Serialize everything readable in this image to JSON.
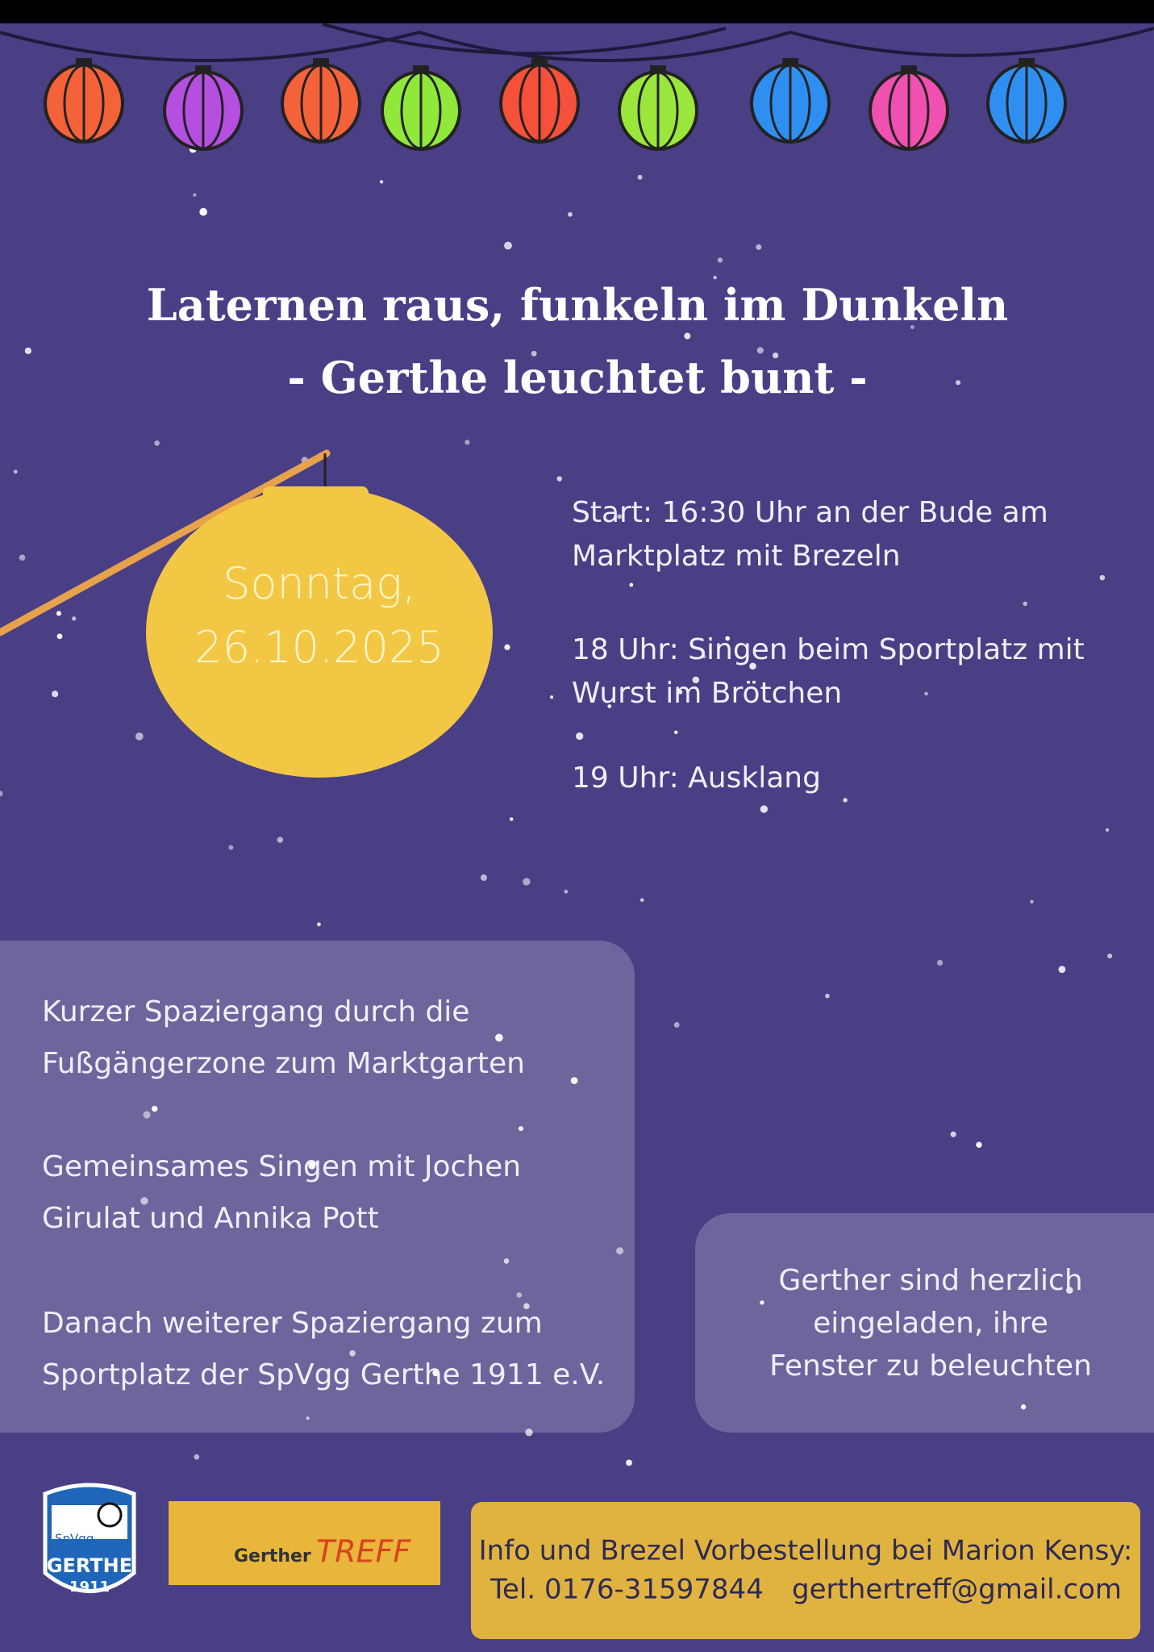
{
  "header": {
    "title": "Laternen raus, funkeln im Dunkeln",
    "subtitle": "- Gerthe leuchtet bunt -"
  },
  "date": {
    "day": "Sonntag,",
    "date": "26.10.2025"
  },
  "schedule": [
    {
      "lines": [
        "Start: 16:30 Uhr an der Bude am",
        "Marktplatz mit Brezeln"
      ]
    },
    {
      "lines": [
        "18 Uhr: Singen beim Sportplatz mit",
        "Wurst im Brötchen"
      ]
    },
    {
      "lines": [
        "19 Uhr: Ausklang"
      ]
    }
  ],
  "walk": [
    {
      "lines": [
        "Kurzer Spaziergang durch die",
        "Fußgängerzone zum Marktgarten"
      ]
    },
    {
      "lines": [
        "Gemeinsames Singen mit Jochen",
        "Girulat und Annika Pott"
      ]
    },
    {
      "lines": [
        "Danach weiterer Spaziergang zum",
        "Sportplatz der SpVgg Gerthe 1911 e.V."
      ]
    }
  ],
  "invitation": {
    "lines": [
      "Gerther sind herzlich",
      "eingeladen, ihre",
      "Fenster zu beleuchten"
    ]
  },
  "logos": {
    "club": [
      "SpVgg",
      "GERTHE",
      "1911"
    ],
    "treff": [
      "Gerther",
      "TREFF"
    ]
  },
  "info": {
    "line": "Info und Brezel Vorbestellung bei Marion Kensy:",
    "phone": "Tel. 0176-31597844",
    "email": "gerthertreff@gmail.com"
  }
}
